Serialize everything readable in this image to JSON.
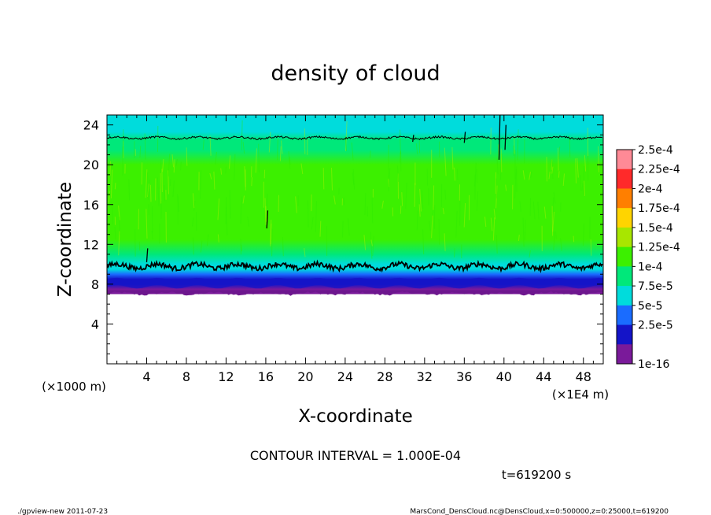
{
  "chart_data": {
    "type": "heatmap",
    "title": "density of cloud",
    "xlabel": "X-coordinate",
    "ylabel": "Z-coordinate",
    "x_unit_label": "(×1E4 m)",
    "y_unit_label": "(×1000 m)",
    "xlim": [
      0,
      50
    ],
    "ylim": [
      0,
      25
    ],
    "x_ticks": [
      4,
      8,
      12,
      16,
      20,
      24,
      28,
      32,
      36,
      40,
      44,
      48
    ],
    "y_ticks": [
      4,
      8,
      12,
      16,
      20,
      24
    ],
    "contour_interval_text": "CONTOUR INTERVAL = 1.000E-04",
    "time_text": "t=619200 s",
    "colorbar": {
      "labels": [
        "2.5e-4",
        "2.25e-4",
        "2e-4",
        "1.75e-4",
        "1.5e-4",
        "1.25e-4",
        "1e-4",
        "7.5e-5",
        "5e-5",
        "2.5e-5",
        "1e-16"
      ],
      "colors": [
        "#ff8a96",
        "#ff2a2a",
        "#ff7f00",
        "#ffd400",
        "#a8e600",
        "#3cf000",
        "#00e87a",
        "#00dcdc",
        "#1a6cff",
        "#1414c8",
        "#7a1a9a"
      ]
    },
    "profile_z": [
      7.0,
      7.5,
      8.0,
      8.5,
      9.0,
      9.5,
      10.0,
      11.0,
      12.5,
      14.0,
      16.0,
      18.0,
      20.0,
      21.5,
      22.5,
      23.3,
      24.0,
      25.0
    ],
    "profile_value": [
      2e-05,
      1.5e-05,
      2.5e-05,
      4.5e-05,
      6.5e-05,
      8e-05,
      9.8e-05,
      0.000112,
      0.000128,
      0.000136,
      0.000142,
      0.00014,
      0.000132,
      0.00012,
      0.000106,
      9e-05,
      8.4e-05,
      7.9e-05
    ],
    "contours": [
      {
        "level": 0.0001,
        "z": 9.8
      },
      {
        "level": 0.0001,
        "z": 22.7
      }
    ]
  },
  "footer": {
    "left": "./gpview-new   2011-07-23",
    "right": "MarsCond_DensCloud.nc@DensCloud,x=0:500000,z=0:25000,t=619200"
  },
  "colors": {
    "background": "#ffffff",
    "axis": "#000000"
  }
}
